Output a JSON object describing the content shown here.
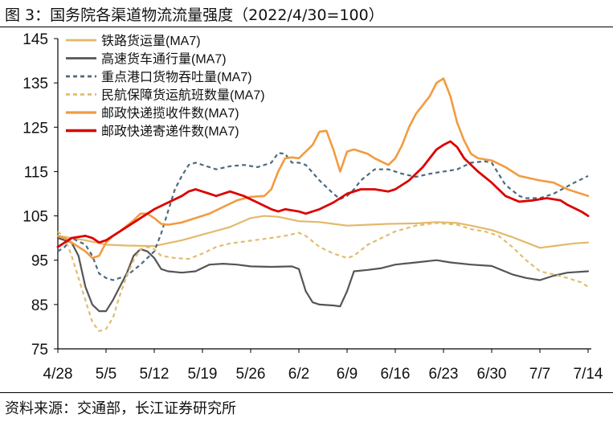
{
  "header": {
    "title": "图 3：国务院各渠道物流流量强度（2022/4/30=100）"
  },
  "footer": {
    "source": "资料来源：交通部，长江证券研究所"
  },
  "chart_data": {
    "type": "line",
    "title": "图 3：国务院各渠道物流流量强度（2022/4/30=100）",
    "xlabel": "",
    "ylabel": "",
    "ylim": [
      75,
      145
    ],
    "yticks": [
      75,
      85,
      95,
      105,
      115,
      125,
      135,
      145
    ],
    "xlim": [
      0,
      77
    ],
    "xticks": [
      {
        "label": "4/28",
        "x": 0
      },
      {
        "label": "5/5",
        "x": 7
      },
      {
        "label": "5/12",
        "x": 14
      },
      {
        "label": "5/19",
        "x": 21
      },
      {
        "label": "5/26",
        "x": 28
      },
      {
        "label": "6/2",
        "x": 35
      },
      {
        "label": "6/9",
        "x": 42
      },
      {
        "label": "6/16",
        "x": 49
      },
      {
        "label": "6/23",
        "x": 56
      },
      {
        "label": "6/30",
        "x": 63
      },
      {
        "label": "7/7",
        "x": 70
      },
      {
        "label": "7/14",
        "x": 77
      }
    ],
    "grid": false,
    "legend": "top-left",
    "series": [
      {
        "name": "铁路货运量(MA7)",
        "color": "#e3b96a",
        "dash": "solid",
        "width": 2.2,
        "points": [
          [
            0,
            100.5
          ],
          [
            2,
            100
          ],
          [
            4,
            99.5
          ],
          [
            7,
            98.5
          ],
          [
            10,
            98.3
          ],
          [
            14,
            98.2
          ],
          [
            18,
            99.5
          ],
          [
            22,
            101.2
          ],
          [
            25,
            102.5
          ],
          [
            28,
            104.5
          ],
          [
            30,
            105
          ],
          [
            32,
            104.8
          ],
          [
            35,
            103.8
          ],
          [
            38,
            103.6
          ],
          [
            40,
            103.2
          ],
          [
            42,
            102.8
          ],
          [
            45,
            103
          ],
          [
            48,
            103.2
          ],
          [
            52,
            103.3
          ],
          [
            55,
            103.6
          ],
          [
            58,
            103.4
          ],
          [
            60,
            102.8
          ],
          [
            63,
            101.8
          ],
          [
            66,
            100.2
          ],
          [
            68,
            99
          ],
          [
            70,
            97.8
          ],
          [
            72,
            98.2
          ],
          [
            75,
            98.8
          ],
          [
            77,
            99
          ]
        ]
      },
      {
        "name": "高速货车通行量(MA7)",
        "color": "#555555",
        "dash": "solid",
        "width": 2.2,
        "points": [
          [
            0,
            100
          ],
          [
            2,
            99
          ],
          [
            3,
            96
          ],
          [
            4,
            89
          ],
          [
            5,
            85
          ],
          [
            6,
            83.5
          ],
          [
            7,
            83.5
          ],
          [
            8,
            86
          ],
          [
            10,
            92
          ],
          [
            11,
            96
          ],
          [
            12,
            97.5
          ],
          [
            13,
            97
          ],
          [
            14,
            95.5
          ],
          [
            15,
            93
          ],
          [
            16,
            92.5
          ],
          [
            18,
            92.2
          ],
          [
            20,
            92.5
          ],
          [
            22,
            94
          ],
          [
            24,
            94.2
          ],
          [
            26,
            94
          ],
          [
            28,
            93.6
          ],
          [
            31,
            93.5
          ],
          [
            34,
            93.6
          ],
          [
            35,
            93
          ],
          [
            36,
            88
          ],
          [
            37,
            85.5
          ],
          [
            38,
            85
          ],
          [
            40,
            84.8
          ],
          [
            41,
            84.6
          ],
          [
            42,
            88
          ],
          [
            43,
            92.5
          ],
          [
            45,
            92.8
          ],
          [
            47,
            93.2
          ],
          [
            49,
            94
          ],
          [
            52,
            94.5
          ],
          [
            55,
            95
          ],
          [
            57,
            94.5
          ],
          [
            60,
            94
          ],
          [
            63,
            93.7
          ],
          [
            66,
            91.8
          ],
          [
            68,
            91
          ],
          [
            70,
            90.5
          ],
          [
            72,
            91.5
          ],
          [
            74,
            92.2
          ],
          [
            77,
            92.5
          ]
        ]
      },
      {
        "name": "重点港口货物吞吐量(MA7)",
        "color": "#4c6a80",
        "dash": "5,4",
        "width": 2.2,
        "points": [
          [
            0,
            97
          ],
          [
            1,
            98
          ],
          [
            2,
            100
          ],
          [
            4,
            98.5
          ],
          [
            5,
            96
          ],
          [
            6,
            92
          ],
          [
            7,
            91
          ],
          [
            8,
            90.5
          ],
          [
            10,
            91.5
          ],
          [
            12,
            94
          ],
          [
            14,
            97
          ],
          [
            15,
            101
          ],
          [
            16,
            106
          ],
          [
            17,
            111
          ],
          [
            18,
            114
          ],
          [
            19,
            116.5
          ],
          [
            20,
            117
          ],
          [
            22,
            116
          ],
          [
            23,
            115.5
          ],
          [
            25,
            116.2
          ],
          [
            27,
            116.5
          ],
          [
            29,
            116
          ],
          [
            31,
            117
          ],
          [
            32,
            119.2
          ],
          [
            33,
            119
          ],
          [
            34,
            117
          ],
          [
            35,
            117
          ],
          [
            36,
            116.5
          ],
          [
            38,
            113
          ],
          [
            40,
            110
          ],
          [
            41,
            108.8
          ],
          [
            42,
            109.5
          ],
          [
            43,
            111
          ],
          [
            44,
            113
          ],
          [
            46,
            115.5
          ],
          [
            48,
            115.5
          ],
          [
            50,
            114.5
          ],
          [
            52,
            113.8
          ],
          [
            54,
            114.5
          ],
          [
            56,
            115
          ],
          [
            58,
            115.5
          ],
          [
            60,
            117
          ],
          [
            62,
            117.3
          ],
          [
            63,
            117
          ],
          [
            65,
            112
          ],
          [
            67,
            109.5
          ],
          [
            68,
            109
          ],
          [
            70,
            109
          ],
          [
            72,
            110
          ],
          [
            75,
            112.5
          ],
          [
            77,
            114
          ]
        ]
      },
      {
        "name": "民航保障货运航班数量(MA7)",
        "color": "#e0bd70",
        "dash": "5,4",
        "width": 2.2,
        "points": [
          [
            0,
            101.5
          ],
          [
            1,
            100
          ],
          [
            2,
            96
          ],
          [
            3,
            91
          ],
          [
            4,
            86
          ],
          [
            5,
            81
          ],
          [
            6,
            79
          ],
          [
            7,
            79.5
          ],
          [
            8,
            82
          ],
          [
            9,
            87
          ],
          [
            10,
            91.5
          ],
          [
            11,
            95
          ],
          [
            12,
            97.5
          ],
          [
            13,
            98
          ],
          [
            14,
            97.5
          ],
          [
            15,
            96
          ],
          [
            17,
            95.5
          ],
          [
            19,
            95.3
          ],
          [
            21,
            96.5
          ],
          [
            23,
            98
          ],
          [
            25,
            98.8
          ],
          [
            27,
            99.2
          ],
          [
            30,
            99.8
          ],
          [
            33,
            100.5
          ],
          [
            35,
            101.2
          ],
          [
            36,
            100.5
          ],
          [
            38,
            98
          ],
          [
            40,
            96.5
          ],
          [
            42,
            95.5
          ],
          [
            43,
            96
          ],
          [
            45,
            98.5
          ],
          [
            47,
            100
          ],
          [
            49,
            101.5
          ],
          [
            52,
            102.8
          ],
          [
            55,
            103.4
          ],
          [
            58,
            103
          ],
          [
            60,
            102
          ],
          [
            62,
            101.5
          ],
          [
            64,
            100.5
          ],
          [
            66,
            98
          ],
          [
            68,
            95
          ],
          [
            70,
            92.5
          ],
          [
            72,
            91.8
          ],
          [
            74,
            91
          ],
          [
            76,
            90
          ],
          [
            77,
            89
          ]
        ]
      },
      {
        "name": "邮政快递揽收件数(MA7)",
        "color": "#f29b40",
        "dash": "solid",
        "width": 2.6,
        "points": [
          [
            0,
            100.5
          ],
          [
            1,
            100
          ],
          [
            2,
            99
          ],
          [
            4,
            97
          ],
          [
            5,
            95.5
          ],
          [
            6,
            96
          ],
          [
            7,
            99
          ],
          [
            8,
            100.5
          ],
          [
            9,
            101.5
          ],
          [
            11,
            104
          ],
          [
            12,
            105.5
          ],
          [
            13,
            105.5
          ],
          [
            14,
            104.5
          ],
          [
            15,
            103.2
          ],
          [
            16,
            103
          ],
          [
            18,
            103.5
          ],
          [
            20,
            104.5
          ],
          [
            22,
            105.5
          ],
          [
            24,
            107
          ],
          [
            26,
            108.5
          ],
          [
            28,
            109.3
          ],
          [
            30,
            109.5
          ],
          [
            31,
            111
          ],
          [
            32,
            115
          ],
          [
            33,
            118
          ],
          [
            34,
            118.2
          ],
          [
            35,
            118
          ],
          [
            37,
            121
          ],
          [
            38,
            124
          ],
          [
            39,
            124.2
          ],
          [
            40,
            120
          ],
          [
            41,
            115
          ],
          [
            42,
            119.5
          ],
          [
            43,
            120
          ],
          [
            45,
            119
          ],
          [
            46,
            118
          ],
          [
            48,
            116.5
          ],
          [
            49,
            118
          ],
          [
            50,
            121
          ],
          [
            51,
            125
          ],
          [
            52,
            128
          ],
          [
            54,
            132
          ],
          [
            55,
            135
          ],
          [
            56,
            136
          ],
          [
            57,
            132
          ],
          [
            58,
            126
          ],
          [
            59,
            122
          ],
          [
            60,
            119
          ],
          [
            61,
            118
          ],
          [
            63,
            117.5
          ],
          [
            65,
            116
          ],
          [
            67,
            114
          ],
          [
            70,
            113
          ],
          [
            72,
            112.5
          ],
          [
            74,
            111
          ],
          [
            77,
            109.5
          ]
        ]
      },
      {
        "name": "邮政快递寄递件数(MA7)",
        "color": "#dc0000",
        "dash": "solid",
        "width": 2.8,
        "points": [
          [
            0,
            98
          ],
          [
            1,
            99
          ],
          [
            2,
            100
          ],
          [
            4,
            100.5
          ],
          [
            5,
            100
          ],
          [
            6,
            99
          ],
          [
            7,
            99.5
          ],
          [
            8,
            100.5
          ],
          [
            10,
            102.5
          ],
          [
            12,
            104.5
          ],
          [
            14,
            106.5
          ],
          [
            16,
            108
          ],
          [
            18,
            109.5
          ],
          [
            19,
            110.5
          ],
          [
            20,
            111
          ],
          [
            22,
            110
          ],
          [
            23,
            109.5
          ],
          [
            25,
            110.5
          ],
          [
            27,
            109.5
          ],
          [
            29,
            108
          ],
          [
            31,
            106.5
          ],
          [
            32,
            106
          ],
          [
            33,
            106.5
          ],
          [
            35,
            106
          ],
          [
            36,
            105.5
          ],
          [
            38,
            106.5
          ],
          [
            40,
            108
          ],
          [
            42,
            110
          ],
          [
            44,
            111
          ],
          [
            46,
            111
          ],
          [
            48,
            110.5
          ],
          [
            49,
            111
          ],
          [
            51,
            113
          ],
          [
            53,
            116
          ],
          [
            55,
            120
          ],
          [
            56,
            121
          ],
          [
            57,
            121.8
          ],
          [
            58,
            120.5
          ],
          [
            59,
            118
          ],
          [
            61,
            115
          ],
          [
            63,
            112.5
          ],
          [
            65,
            109.5
          ],
          [
            67,
            108.2
          ],
          [
            69,
            108.5
          ],
          [
            71,
            109
          ],
          [
            73,
            108.5
          ],
          [
            74,
            107.5
          ],
          [
            76,
            106
          ],
          [
            77,
            105
          ]
        ]
      }
    ]
  }
}
